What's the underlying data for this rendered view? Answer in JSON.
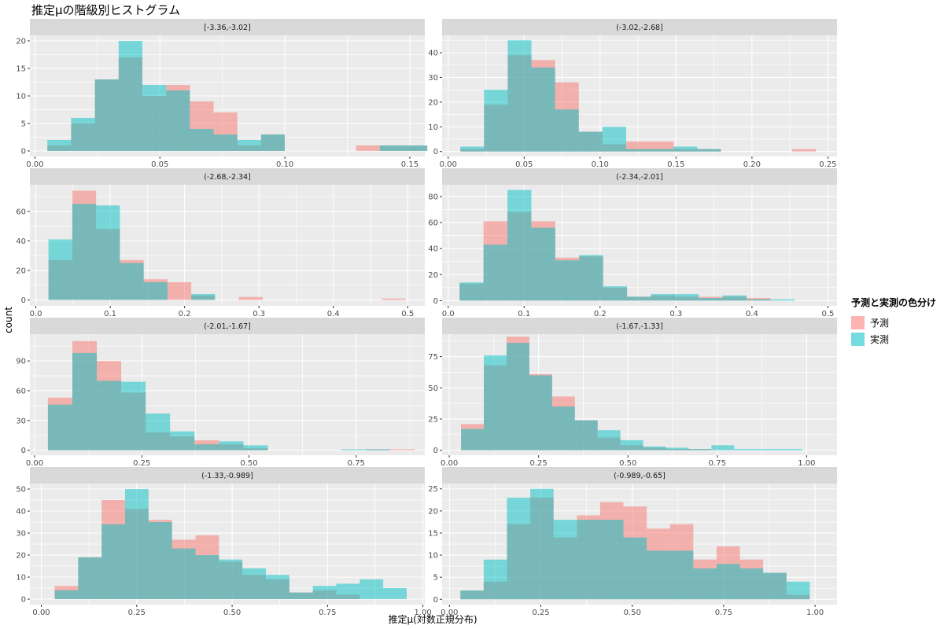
{
  "title": "推定μの階級別ヒストグラム",
  "xlabel": "推定μ(対数正規分布)",
  "ylabel": "count",
  "legend": {
    "title": "予測と実測の色分け",
    "items": [
      {
        "label": "予測",
        "color": "#F8766D"
      },
      {
        "label": "実測",
        "color": "#00BFC4"
      }
    ]
  },
  "colors": {
    "predicted": "#F8766D",
    "actual": "#00BFC4",
    "panel": "#EBEBEB",
    "strip": "#D9D9D9"
  },
  "chart_data": {
    "type": "bar",
    "bar_layout": "overlaid histogram (alpha 0.5)",
    "grid": true,
    "legend_position": "right",
    "facets": [
      {
        "label": "[-3.36,-3.02]",
        "xlim": [
          -0.002,
          0.156
        ],
        "ylim": [
          -1,
          21
        ],
        "xticks": [
          0.0,
          0.05,
          0.1,
          0.15
        ],
        "xticklabels": [
          "0.00",
          "0.05",
          "0.10",
          "0.15"
        ],
        "yticks": [
          0,
          5,
          10,
          15,
          20
        ],
        "bin_start": 0.005,
        "bin_width": 0.0095,
        "predicted": [
          1,
          5,
          13,
          17,
          10,
          12,
          9,
          7,
          1,
          3,
          0,
          0,
          0,
          1,
          1,
          1
        ],
        "actual": [
          2,
          6,
          13,
          20,
          12,
          11,
          4,
          3,
          2,
          3,
          0,
          0,
          0,
          0,
          1,
          1
        ]
      },
      {
        "label": "(-3.02,-2.68]",
        "xlim": [
          -0.004,
          0.256
        ],
        "ylim": [
          -2,
          47
        ],
        "xticks": [
          0.0,
          0.05,
          0.1,
          0.15,
          0.2,
          0.25
        ],
        "xticklabels": [
          "0.00",
          "0.05",
          "0.10",
          "0.15",
          "0.20",
          "0.25"
        ],
        "yticks": [
          0,
          10,
          20,
          30,
          40
        ],
        "bin_start": 0.008,
        "bin_width": 0.0156,
        "predicted": [
          1,
          19,
          39,
          37,
          28,
          8,
          3,
          4,
          4,
          1,
          1,
          0,
          0,
          0,
          1
        ],
        "actual": [
          2,
          25,
          45,
          34,
          17,
          8,
          10,
          1,
          1,
          2,
          1,
          0,
          0,
          0,
          0
        ]
      },
      {
        "label": "(-2.68,-2.34]",
        "xlim": [
          -0.008,
          0.523
        ],
        "ylim": [
          -4,
          78
        ],
        "xticks": [
          0.0,
          0.1,
          0.2,
          0.3,
          0.4,
          0.5
        ],
        "xticklabels": [
          "0.0",
          "0.1",
          "0.2",
          "0.3",
          "0.4",
          "0.5"
        ],
        "yticks": [
          0,
          20,
          40,
          60
        ],
        "bin_start": 0.017,
        "bin_width": 0.032,
        "predicted": [
          27,
          74,
          48,
          27,
          14,
          12,
          3,
          0,
          2,
          0,
          0,
          0,
          0,
          0,
          1
        ],
        "actual": [
          41,
          65,
          64,
          25,
          12,
          0,
          4,
          0,
          0,
          0,
          0,
          0,
          0,
          0,
          0
        ]
      },
      {
        "label": "(-2.34,-2.01]",
        "xlim": [
          -0.008,
          0.512
        ],
        "ylim": [
          -4,
          89
        ],
        "xticks": [
          0.0,
          0.1,
          0.2,
          0.3,
          0.4,
          0.5
        ],
        "xticklabels": [
          "0.0",
          "0.1",
          "0.2",
          "0.3",
          "0.4",
          "0.5"
        ],
        "yticks": [
          0,
          20,
          40,
          60,
          80
        ],
        "bin_start": 0.015,
        "bin_width": 0.0315,
        "predicted": [
          13,
          61,
          68,
          61,
          33,
          34,
          10,
          3,
          4,
          3,
          3,
          3,
          2,
          0,
          0
        ],
        "actual": [
          14,
          43,
          85,
          56,
          31,
          35,
          11,
          3,
          5,
          5,
          2,
          4,
          1,
          1,
          0
        ]
      },
      {
        "label": "(-2.01,-1.67]",
        "xlim": [
          -0.011,
          0.91
        ],
        "ylim": [
          -5,
          117
        ],
        "xticks": [
          0.0,
          0.25,
          0.5,
          0.75
        ],
        "xticklabels": [
          "0.00",
          "0.25",
          "0.50",
          "0.75"
        ],
        "yticks": [
          0,
          30,
          60,
          90
        ],
        "bin_start": 0.031,
        "bin_width": 0.057,
        "predicted": [
          53,
          110,
          90,
          58,
          18,
          14,
          10,
          6,
          2,
          0,
          0,
          0,
          0,
          1,
          1
        ],
        "actual": [
          46,
          98,
          70,
          69,
          37,
          19,
          6,
          9,
          5,
          0,
          0,
          0,
          1,
          1,
          0
        ]
      },
      {
        "label": "(-1.67,-1.33]",
        "xlim": [
          -0.02,
          1.085
        ],
        "ylim": [
          -4,
          93
        ],
        "xticks": [
          0.0,
          0.25,
          0.5,
          0.75,
          1.0
        ],
        "xticklabels": [
          "0.00",
          "0.25",
          "0.50",
          "0.75",
          "1.00"
        ],
        "yticks": [
          0,
          25,
          50,
          75
        ],
        "bin_start": 0.033,
        "bin_width": 0.0637,
        "predicted": [
          21,
          68,
          91,
          61,
          43,
          24,
          10,
          4,
          2,
          1,
          1,
          0,
          0,
          0,
          0,
          0
        ],
        "actual": [
          17,
          76,
          86,
          60,
          35,
          24,
          16,
          8,
          3,
          2,
          1,
          4,
          1,
          1,
          1,
          0
        ]
      },
      {
        "label": "(-1.33,-0.989]",
        "xlim": [
          -0.03,
          1.005
        ],
        "ylim": [
          -2.5,
          52.5
        ],
        "xticks": [
          0.0,
          0.25,
          0.5,
          0.75,
          1.0
        ],
        "xticklabels": [
          "0.00",
          "0.25",
          "0.50",
          "0.75",
          "1.00"
        ],
        "yticks": [
          0,
          10,
          20,
          30,
          40,
          50
        ],
        "bin_start": 0.035,
        "bin_width": 0.0615,
        "predicted": [
          6,
          19,
          45,
          41,
          36,
          27,
          29,
          17,
          11,
          9,
          3,
          4,
          2,
          0
        ],
        "actual": [
          4,
          19,
          34,
          50,
          35,
          23,
          20,
          18,
          14,
          11,
          3,
          6,
          7,
          9,
          5
        ]
      },
      {
        "label": "(-0.989,-0.65]",
        "xlim": [
          -0.02,
          1.06
        ],
        "ylim": [
          -1.2,
          26.2
        ],
        "xticks": [
          0.0,
          0.25,
          0.5,
          0.75,
          1.0
        ],
        "xticklabels": [
          "0.00",
          "0.25",
          "0.50",
          "0.75",
          "1.00"
        ],
        "yticks": [
          0,
          5,
          10,
          15,
          20,
          25
        ],
        "bin_start": 0.03,
        "bin_width": 0.0637,
        "predicted": [
          2,
          4,
          17,
          23,
          14,
          19,
          22,
          21,
          16,
          17,
          9,
          12,
          9,
          6,
          1
        ],
        "actual": [
          2,
          9,
          23,
          25,
          18,
          18,
          18,
          14,
          11,
          11,
          7,
          8,
          7,
          6,
          4
        ]
      }
    ]
  }
}
